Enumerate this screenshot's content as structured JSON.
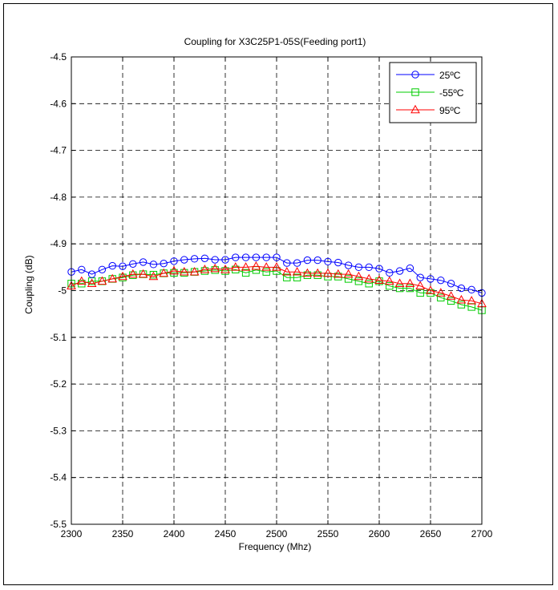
{
  "chart_data": {
    "type": "line",
    "title": "Coupling for X3C25P1-05S(Feeding port1)",
    "xlabel": "Frequency (Mhz)",
    "ylabel": "Coupling (dB)",
    "xlim": [
      2300,
      2700
    ],
    "ylim": [
      -5.5,
      -4.5
    ],
    "xticks": [
      2300,
      2350,
      2400,
      2450,
      2500,
      2550,
      2600,
      2650,
      2700
    ],
    "xtick_labels": [
      "2300",
      "2350",
      "2400",
      "2450",
      "2500",
      "2550",
      "2600",
      "2650",
      "2700"
    ],
    "yticks": [
      -4.5,
      -4.6,
      -4.7,
      -4.8,
      -4.9,
      -5,
      -5.1,
      -5.2,
      -5.3,
      -5.4,
      -5.5
    ],
    "ytick_labels": [
      "-4.5",
      "-4.6",
      "-4.7",
      "-4.8",
      "-4.9",
      "-5",
      "-5.1",
      "-5.2",
      "-5.3",
      "-5.4",
      "-5.5"
    ],
    "grid": true,
    "legend_position": "top-right",
    "x": [
      2300,
      2310,
      2320,
      2330,
      2340,
      2350,
      2360,
      2370,
      2380,
      2390,
      2400,
      2410,
      2420,
      2430,
      2440,
      2450,
      2460,
      2470,
      2480,
      2490,
      2500,
      2510,
      2520,
      2530,
      2540,
      2550,
      2560,
      2570,
      2580,
      2590,
      2600,
      2610,
      2620,
      2630,
      2640,
      2650,
      2660,
      2670,
      2680,
      2690,
      2700
    ],
    "series": [
      {
        "name": "25ºC",
        "color": "#0000ff",
        "marker": "circle",
        "values": [
          -4.96,
          -4.955,
          -4.965,
          -4.955,
          -4.947,
          -4.948,
          -4.943,
          -4.939,
          -4.944,
          -4.942,
          -4.937,
          -4.934,
          -4.932,
          -4.931,
          -4.934,
          -4.934,
          -4.929,
          -4.929,
          -4.929,
          -4.929,
          -4.929,
          -4.941,
          -4.941,
          -4.935,
          -4.935,
          -4.938,
          -4.94,
          -4.946,
          -4.95,
          -4.95,
          -4.953,
          -4.962,
          -4.958,
          -4.952,
          -4.972,
          -4.975,
          -4.978,
          -4.985,
          -4.995,
          -4.998,
          -5.005
        ]
      },
      {
        "name": "-55ºC",
        "color": "#00cc00",
        "marker": "square",
        "values": [
          -4.985,
          -4.985,
          -4.98,
          -4.98,
          -4.975,
          -4.972,
          -4.967,
          -4.965,
          -4.966,
          -4.963,
          -4.962,
          -4.962,
          -4.96,
          -4.958,
          -4.956,
          -4.958,
          -4.955,
          -4.962,
          -4.956,
          -4.96,
          -4.958,
          -4.972,
          -4.972,
          -4.967,
          -4.967,
          -4.97,
          -4.97,
          -4.975,
          -4.98,
          -4.985,
          -4.98,
          -4.99,
          -4.995,
          -4.995,
          -5.005,
          -5.005,
          -5.015,
          -5.022,
          -5.03,
          -5.035,
          -5.042
        ]
      },
      {
        "name": "95ºC",
        "color": "#ff0000",
        "marker": "triangle",
        "values": [
          -4.99,
          -4.98,
          -4.985,
          -4.98,
          -4.975,
          -4.97,
          -4.965,
          -4.965,
          -4.97,
          -4.963,
          -4.958,
          -4.96,
          -4.96,
          -4.955,
          -4.953,
          -4.955,
          -4.95,
          -4.95,
          -4.948,
          -4.95,
          -4.95,
          -4.96,
          -4.96,
          -4.963,
          -4.963,
          -4.963,
          -4.965,
          -4.965,
          -4.97,
          -4.975,
          -4.978,
          -4.98,
          -4.985,
          -4.985,
          -4.99,
          -5.0,
          -5.005,
          -5.012,
          -5.02,
          -5.022,
          -5.028
        ]
      }
    ]
  }
}
